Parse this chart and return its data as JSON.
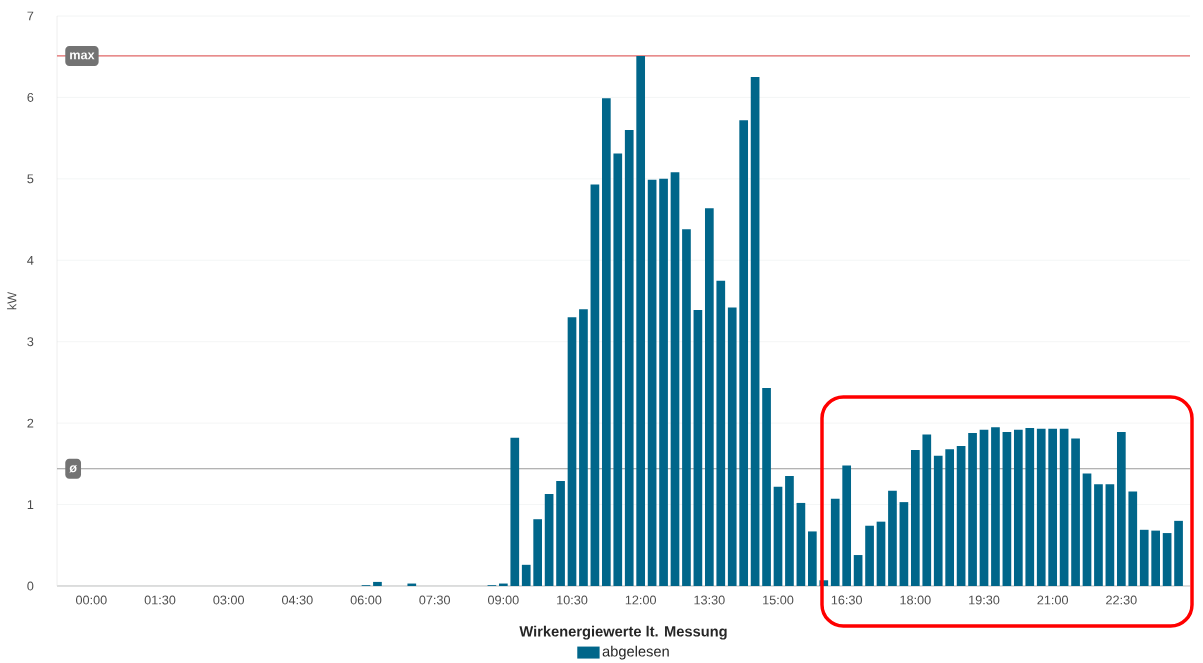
{
  "chart_data": {
    "type": "bar",
    "ylabel": "kW",
    "legend_title": "Wirkenergiewerte lt. Messung",
    "x": [
      0,
      0.25,
      0.5,
      0.75,
      1,
      1.25,
      1.5,
      1.75,
      2,
      2.25,
      2.5,
      2.75,
      3,
      3.25,
      3.5,
      3.75,
      4,
      4.25,
      4.5,
      4.75,
      5,
      5.25,
      5.5,
      5.75,
      6,
      6.25,
      6.5,
      6.75,
      7,
      7.25,
      7.5,
      7.75,
      8,
      8.25,
      8.5,
      8.75,
      9,
      9.25,
      9.5,
      9.75,
      10,
      10.25,
      10.5,
      10.75,
      11,
      11.25,
      11.5,
      11.75,
      12,
      12.25,
      12.5,
      12.75,
      13,
      13.25,
      13.5,
      13.75,
      14,
      14.25,
      14.5,
      14.75,
      15,
      15.25,
      15.5,
      15.75,
      16,
      16.25,
      16.5,
      16.75,
      17,
      17.25,
      17.5,
      17.75,
      18,
      18.25,
      18.5,
      18.75,
      19,
      19.25,
      19.5,
      19.75,
      20,
      20.25,
      20.5,
      20.75,
      21,
      21.25,
      21.5,
      21.75,
      22,
      22.25,
      22.5,
      22.75,
      23,
      23.25,
      23.5,
      23.75
    ],
    "series": [
      {
        "name": "abgelesen",
        "color": "#00668a",
        "values": [
          0,
          0,
          0,
          0,
          0,
          0,
          0,
          0,
          0,
          0,
          0,
          0,
          0,
          0,
          0,
          0,
          0,
          0,
          0,
          0,
          0,
          0,
          0,
          0,
          0.01,
          0.05,
          0,
          0,
          0.03,
          0,
          0,
          0,
          0,
          0,
          0,
          0.01,
          0.03,
          1.82,
          0.26,
          0.82,
          1.13,
          1.29,
          3.3,
          3.4,
          4.93,
          5.99,
          5.31,
          5.6,
          6.51,
          4.99,
          5.0,
          5.08,
          4.38,
          3.39,
          4.64,
          3.75,
          3.42,
          5.72,
          6.25,
          2.43,
          1.22,
          1.35,
          1.02,
          0.67,
          0.07,
          1.07,
          1.48,
          0.38,
          0.74,
          0.79,
          1.17,
          1.03,
          1.67,
          1.86,
          1.6,
          1.68,
          1.72,
          1.88,
          1.92,
          1.95,
          1.89,
          1.92,
          1.94,
          1.93,
          1.93,
          1.93,
          1.81,
          1.38,
          1.25,
          1.25,
          1.89,
          1.16,
          0.69,
          0.68,
          0.65,
          0.8
        ]
      }
    ],
    "xlim": [
      -0.75,
      24
    ],
    "ylim": [
      0,
      7
    ],
    "xticks": [
      {
        "value": 0,
        "label": "00:00"
      },
      {
        "value": 1.5,
        "label": "01:30"
      },
      {
        "value": 3,
        "label": "03:00"
      },
      {
        "value": 4.5,
        "label": "04:30"
      },
      {
        "value": 6,
        "label": "06:00"
      },
      {
        "value": 7.5,
        "label": "07:30"
      },
      {
        "value": 9,
        "label": "09:00"
      },
      {
        "value": 10.5,
        "label": "10:30"
      },
      {
        "value": 12,
        "label": "12:00"
      },
      {
        "value": 13.5,
        "label": "13:30"
      },
      {
        "value": 15,
        "label": "15:00"
      },
      {
        "value": 16.5,
        "label": "16:30"
      },
      {
        "value": 18,
        "label": "18:00"
      },
      {
        "value": 19.5,
        "label": "19:30"
      },
      {
        "value": 21,
        "label": "21:00"
      },
      {
        "value": 22.5,
        "label": "22:30"
      }
    ],
    "yticks": [
      0,
      1,
      2,
      3,
      4,
      5,
      6,
      7
    ],
    "ref_lines": [
      {
        "axis": "y",
        "value": 6.51,
        "label": "max",
        "color": "#e06666"
      },
      {
        "axis": "y",
        "value": 1.44,
        "label": "ø",
        "color": "#9a9a9a"
      }
    ],
    "grid": "y",
    "legend": "bottom"
  }
}
